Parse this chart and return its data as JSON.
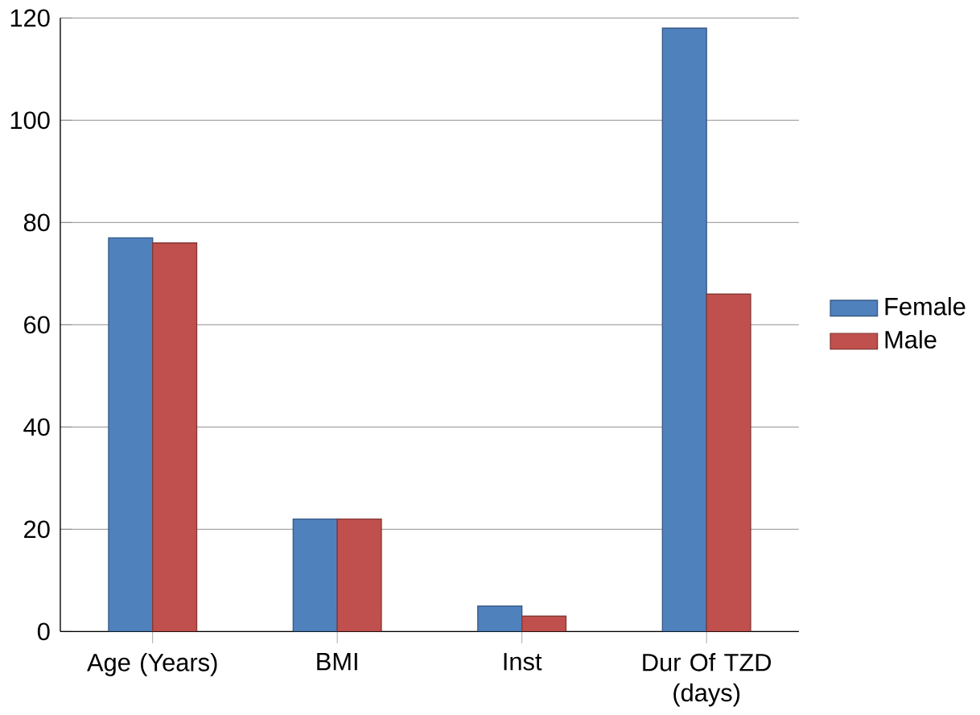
{
  "chart_data": {
    "type": "bar",
    "categories": [
      "Age (Years)",
      "BMI",
      "Inst",
      "Dur Of TZD (days)"
    ],
    "series": [
      {
        "name": "Female",
        "color": "#4f81bd",
        "values": [
          77,
          22,
          5,
          118
        ]
      },
      {
        "name": "Male",
        "color": "#c0504d",
        "values": [
          76,
          22,
          3,
          66
        ]
      }
    ],
    "ylim": [
      0,
      120
    ],
    "yticks": [
      0,
      20,
      40,
      60,
      80,
      100,
      120
    ],
    "grid": "y",
    "legend": "right"
  }
}
